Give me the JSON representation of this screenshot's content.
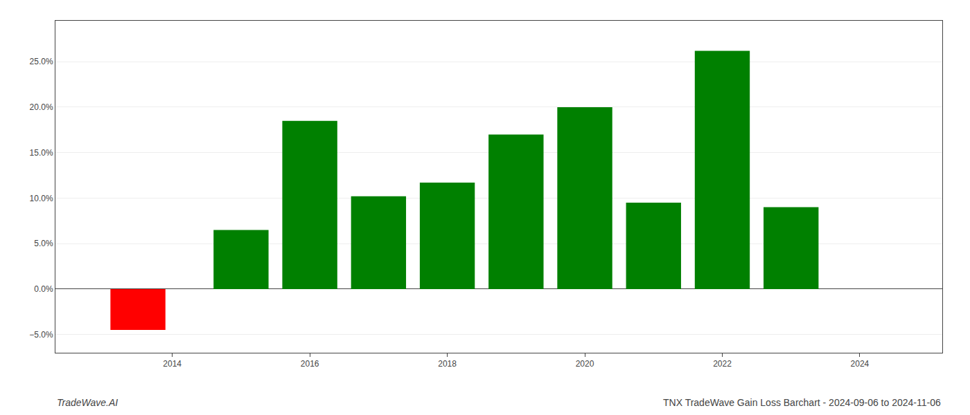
{
  "chart_data": {
    "type": "bar",
    "title": "TNX TradeWave Gain Loss Barchart - 2024-09-06 to 2024-11-06",
    "annotations": [
      "TradeWave.AI"
    ],
    "x": [
      2013.5,
      2015,
      2016,
      2017,
      2018,
      2019,
      2020,
      2021,
      2022,
      2023
    ],
    "values": [
      -0.045,
      0.065,
      0.185,
      0.102,
      0.117,
      0.17,
      0.2,
      0.095,
      0.262,
      0.09
    ],
    "colors": [
      "#ff0000",
      "#008000",
      "#008000",
      "#008000",
      "#008000",
      "#008000",
      "#008000",
      "#008000",
      "#008000",
      "#008000"
    ],
    "xlim": [
      2012.3,
      2025.2
    ],
    "xticks": [
      2014,
      2016,
      2018,
      2020,
      2022,
      2024
    ],
    "ylim": [
      -0.07,
      0.295
    ],
    "yticks": [
      {
        "value": -0.05,
        "label": "−5.0%"
      },
      {
        "value": 0.0,
        "label": "0.0%"
      },
      {
        "value": 0.05,
        "label": "5.0%"
      },
      {
        "value": 0.1,
        "label": "10.0%"
      },
      {
        "value": 0.15,
        "label": "15.0%"
      },
      {
        "value": 0.2,
        "label": "20.0%"
      },
      {
        "value": 0.25,
        "label": "25.0%"
      }
    ],
    "grid": true
  }
}
